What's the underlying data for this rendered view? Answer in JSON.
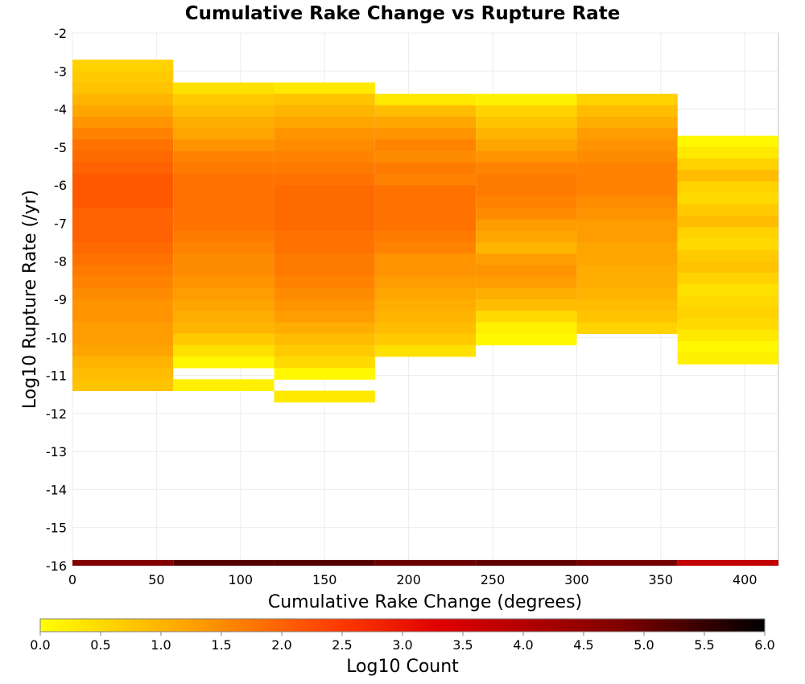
{
  "chart_data": {
    "type": "heatmap",
    "title": "Cumulative Rake Change vs Rupture Rate",
    "xlabel": "Cumulative Rake Change (degrees)",
    "ylabel": "Log10 Rupture Rate (/yr)",
    "xlim": [
      0,
      420
    ],
    "ylim": [
      -16,
      -2
    ],
    "x_ticks": [
      "0",
      "50",
      "100",
      "150",
      "200",
      "250",
      "300",
      "350",
      "400"
    ],
    "y_ticks": [
      "-2",
      "-3",
      "-4",
      "-5",
      "-6",
      "-7",
      "-8",
      "-9",
      "-10",
      "-11",
      "-12",
      "-13",
      "-14",
      "-15",
      "-16"
    ],
    "x_bin_width": 60,
    "y_bin_height": 0.3,
    "grid": true,
    "colorscale": {
      "label": "Log10 Count",
      "min": 0.0,
      "max": 6.0,
      "ticks": [
        "0.0",
        "0.5",
        "1.0",
        "1.5",
        "2.0",
        "2.5",
        "3.0",
        "3.5",
        "4.0",
        "4.5",
        "5.0",
        "5.5",
        "6.0"
      ],
      "colors": [
        "#ffff00",
        "#ffa500",
        "#ff4000",
        "#e00000",
        "#800000",
        "#000000"
      ]
    },
    "columns": [
      {
        "x_range": [
          0,
          60
        ],
        "y_top": -2.7,
        "values": [
          0.6,
          0.7,
          0.8,
          1.0,
          1.2,
          1.4,
          1.6,
          1.8,
          1.9,
          2.0,
          2.1,
          2.1,
          2.1,
          2.0,
          2.0,
          2.0,
          1.9,
          1.8,
          1.7,
          1.6,
          1.5,
          1.4,
          1.4,
          1.3,
          1.3,
          1.2,
          1.0,
          0.9,
          0.8
        ],
        "bottom_band": 4.8
      },
      {
        "x_range": [
          60,
          120
        ],
        "y_top": -3.3,
        "values": [
          0.4,
          0.7,
          0.9,
          1.1,
          1.2,
          1.4,
          1.6,
          1.7,
          1.8,
          1.8,
          1.8,
          1.8,
          1.8,
          1.7,
          1.6,
          1.5,
          1.5,
          1.4,
          1.3,
          1.2,
          1.1,
          1.0,
          0.7,
          0.4,
          0.1,
          null,
          0.2
        ],
        "bottom_band": 5.2
      },
      {
        "x_range": [
          120,
          180
        ],
        "y_top": -3.3,
        "values": [
          0.3,
          0.8,
          1.0,
          1.2,
          1.4,
          1.5,
          1.6,
          1.7,
          1.8,
          1.9,
          1.9,
          1.9,
          1.9,
          1.8,
          1.8,
          1.7,
          1.7,
          1.6,
          1.5,
          1.4,
          1.3,
          1.1,
          0.9,
          0.7,
          0.5,
          0.1,
          null,
          0.3
        ],
        "bottom_band": 5.2
      },
      {
        "x_range": [
          180,
          240
        ],
        "y_top": -3.6,
        "values": [
          0.3,
          0.9,
          1.2,
          1.4,
          1.6,
          1.5,
          1.7,
          1.6,
          1.8,
          1.8,
          1.8,
          1.8,
          1.7,
          1.6,
          1.4,
          1.4,
          1.3,
          1.2,
          1.1,
          1.0,
          0.9,
          0.7,
          0.4
        ],
        "bottom_band": 5.0
      },
      {
        "x_range": [
          240,
          300
        ],
        "y_top": -3.6,
        "values": [
          0.2,
          0.6,
          0.8,
          1.0,
          1.2,
          1.4,
          1.6,
          1.7,
          1.7,
          1.6,
          1.5,
          1.3,
          1.2,
          1.0,
          1.3,
          1.4,
          1.3,
          1.1,
          0.9,
          0.5,
          0.2,
          0.1
        ],
        "bottom_band": 5.1
      },
      {
        "x_range": [
          300,
          360
        ],
        "y_top": -3.6,
        "values": [
          0.6,
          0.9,
          1.1,
          1.3,
          1.4,
          1.5,
          1.6,
          1.6,
          1.6,
          1.5,
          1.4,
          1.3,
          1.3,
          1.2,
          1.2,
          1.1,
          1.1,
          1.0,
          0.9,
          0.8,
          0.6
        ],
        "bottom_band": 4.9
      },
      {
        "x_range": [
          360,
          420
        ],
        "y_top": -4.7,
        "values": [
          0.1,
          0.3,
          0.6,
          0.9,
          0.6,
          0.5,
          0.7,
          0.9,
          0.6,
          0.5,
          0.7,
          0.8,
          0.6,
          0.4,
          0.5,
          0.6,
          0.5,
          0.3,
          0.1,
          0.2
        ],
        "bottom_band": 3.8
      }
    ],
    "bottom_band_y_range": [
      -16,
      -15.85
    ]
  }
}
